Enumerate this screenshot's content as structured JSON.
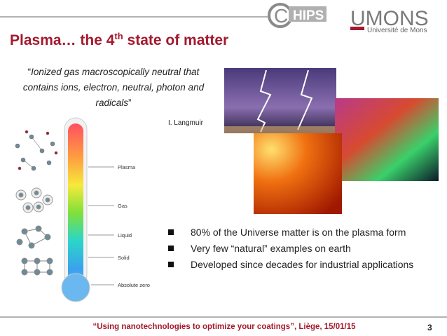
{
  "header": {
    "logo_c": "C",
    "logo_hips": "HIPS",
    "logo_umons": "UMONS",
    "logo_university": "Université de Mons"
  },
  "title": {
    "pre": "Plasma… the 4",
    "sup": "th",
    "post": " state of matter"
  },
  "quote": {
    "open": "“",
    "text": "Ionized gas macroscopically neutral that contains ions, electron, neutral, photon and radicals",
    "close": "”",
    "author": "I. Langmuir"
  },
  "thermometer": {
    "labels": [
      "Plasma",
      "Gas",
      "Liquid",
      "Solid",
      "Absolute zero"
    ]
  },
  "bullets": [
    "80% of the Universe matter is on the plasma form",
    "Very few “natural” examples on earth",
    "Developed since decades for industrial applications"
  ],
  "footer": {
    "text": "“Using nanotechnologies to optimize your coatings”, Liège, 15/01/15",
    "page": "3"
  }
}
